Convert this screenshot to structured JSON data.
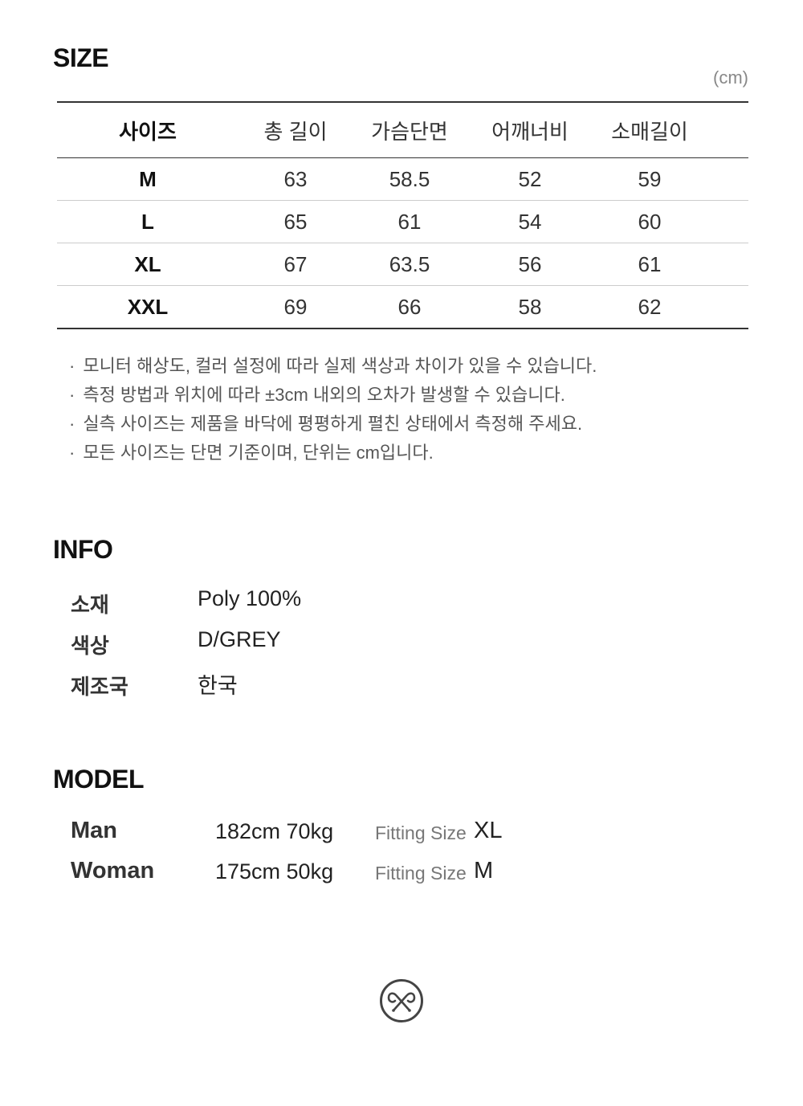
{
  "size": {
    "title": "SIZE",
    "unit": "(cm)",
    "headers": [
      "사이즈",
      "총 길이",
      "가슴단면",
      "어깨너비",
      "소매길이"
    ],
    "rows": [
      [
        "M",
        "63",
        "58.5",
        "52",
        "59"
      ],
      [
        "L",
        "65",
        "61",
        "54",
        "60"
      ],
      [
        "XL",
        "67",
        "63.5",
        "56",
        "61"
      ],
      [
        "XXL",
        "69",
        "66",
        "58",
        "62"
      ]
    ],
    "notes": [
      "모니터 해상도, 컬러 설정에 따라 실제 색상과 차이가 있을 수 있습니다.",
      "측정 방법과 위치에 따라 ±3cm 내외의 오차가 발생할 수 있습니다.",
      "실측 사이즈는 제품을 바닥에 평평하게 펼친 상태에서 측정해 주세요.",
      "모든 사이즈는 단면 기준이며, 단위는 cm입니다."
    ]
  },
  "info": {
    "title": "INFO",
    "items": [
      {
        "label": "소재",
        "value": "Poly 100%"
      },
      {
        "label": "색상",
        "value": "D/GREY"
      },
      {
        "label": "제조국",
        "value": "한국"
      }
    ]
  },
  "model": {
    "title": "MODEL",
    "items": [
      {
        "label": "Man",
        "value": "182cm 70kg",
        "fit_label": "Fitting Size",
        "fit": "XL"
      },
      {
        "label": "Woman",
        "value": "175cm 50kg",
        "fit_label": "Fitting Size",
        "fit": "M"
      }
    ]
  },
  "logo": {
    "icon": "crossed-hooks-circle-logo",
    "color": "#444444"
  }
}
